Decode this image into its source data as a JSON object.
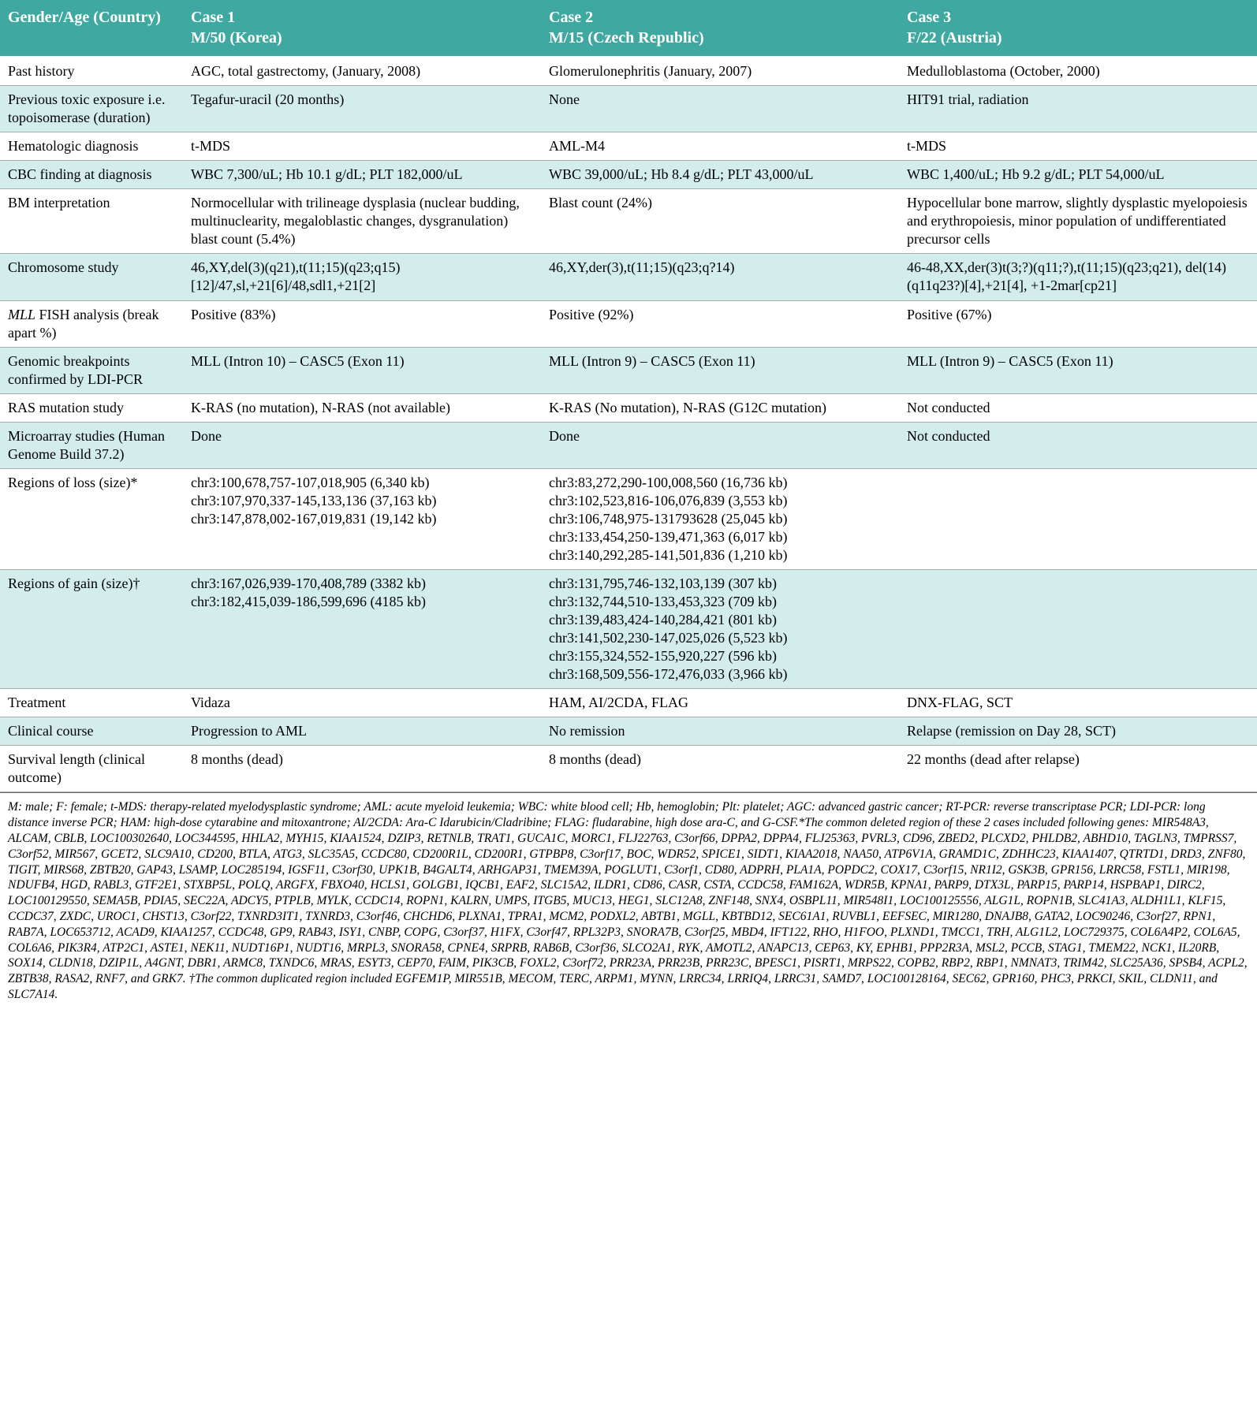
{
  "header_bg": "#3fa8a0",
  "header_fg": "#ffffff",
  "shade_bg": "#d3ecec",
  "border_color": "#aaaaaa",
  "columns": [
    {
      "label_l1": "",
      "label_l2": "Gender/Age (Country)"
    },
    {
      "label_l1": "Case 1",
      "label_l2": "M/50 (Korea)"
    },
    {
      "label_l1": "Case 2",
      "label_l2": "M/15 (Czech Republic)"
    },
    {
      "label_l1": "Case 3",
      "label_l2": "F/22 (Austria)"
    }
  ],
  "rows": [
    {
      "shade": false,
      "label": "Past history",
      "c1": "AGC, total gastrectomy, (January, 2008)",
      "c2": "Glomerulonephritis (January, 2007)",
      "c3": "Medulloblastoma (October, 2000)"
    },
    {
      "shade": true,
      "label": "Previous toxic exposure i.e. topoisomerase (duration)",
      "c1": "Tegafur-uracil (20 months)",
      "c2": "None",
      "c3": "HIT91 trial, radiation"
    },
    {
      "shade": false,
      "label": "Hematologic diagnosis",
      "c1": "t-MDS",
      "c2": "AML-M4",
      "c3": "t-MDS"
    },
    {
      "shade": true,
      "label": "CBC finding at diagnosis",
      "c1": "WBC 7,300/uL; Hb 10.1 g/dL; PLT 182,000/uL",
      "c2": "WBC 39,000/uL; Hb 8.4 g/dL; PLT 43,000/uL",
      "c3": "WBC 1,400/uL; Hb 9.2 g/dL; PLT 54,000/uL"
    },
    {
      "shade": false,
      "label": "BM interpretation",
      "c1": "Normocellular with trilineage dysplasia (nuclear budding, multinuclearity, megaloblastic changes, dysgranulation) blast count (5.4%)",
      "c2": "Blast count (24%)",
      "c3": "Hypocellular bone marrow, slightly dysplastic myelopoiesis and erythropoiesis, minor population of undifferentiated precursor cells"
    },
    {
      "shade": true,
      "label": "Chromosome study",
      "c1": "46,XY,del(3)(q21),t(11;15)(q23;q15)[12]/47,sl,+21[6]/48,sdl1,+21[2]",
      "c2": "46,XY,der(3),t(11;15)(q23;q?14)",
      "c3": "46-48,XX,der(3)t(3;?)(q11;?),t(11;15)(q23;q21), del(14)(q11q23?)[4],+21[4], +1-2mar[cp21]"
    },
    {
      "shade": false,
      "label_html": "<em class='gene'>MLL</em> FISH analysis (break apart %)",
      "c1": "Positive (83%)",
      "c2": "Positive (92%)",
      "c3": "Positive (67%)"
    },
    {
      "shade": true,
      "label": "Genomic breakpoints confirmed by LDI-PCR",
      "c1": "MLL (Intron 10) – CASC5 (Exon 11)",
      "c2": "MLL (Intron 9) – CASC5 (Exon 11)",
      "c3": "MLL (Intron 9) – CASC5 (Exon 11)"
    },
    {
      "shade": false,
      "label": "RAS mutation study",
      "c1": "K-RAS (no mutation), N-RAS (not available)",
      "c2": "K-RAS (No mutation), N-RAS (G12C mutation)",
      "c3": "Not conducted"
    },
    {
      "shade": true,
      "label": "Microarray studies (Human Genome Build 37.2)",
      "c1": "Done",
      "c2": "Done",
      "c3": "Not conducted"
    },
    {
      "shade": false,
      "label": "Regions of loss (size)*",
      "c1": "chr3:100,678,757-107,018,905 (6,340 kb)\nchr3:107,970,337-145,133,136 (37,163 kb)\nchr3:147,878,002-167,019,831 (19,142 kb)",
      "c2": "chr3:83,272,290-100,008,560 (16,736 kb)\nchr3:102,523,816-106,076,839 (3,553 kb)\nchr3:106,748,975-131793628 (25,045 kb)\nchr3:133,454,250-139,471,363 (6,017 kb)\nchr3:140,292,285-141,501,836 (1,210 kb)",
      "c3": ""
    },
    {
      "shade": true,
      "label": "Regions of gain (size)†",
      "c1": "chr3:167,026,939-170,408,789 (3382 kb)\nchr3:182,415,039-186,599,696 (4185 kb)",
      "c2": "chr3:131,795,746-132,103,139 (307 kb)\nchr3:132,744,510-133,453,323 (709 kb)\nchr3:139,483,424-140,284,421 (801 kb)\nchr3:141,502,230-147,025,026 (5,523 kb)\nchr3:155,324,552-155,920,227 (596 kb)\nchr3:168,509,556-172,476,033 (3,966 kb)",
      "c3": ""
    },
    {
      "shade": false,
      "label": "Treatment",
      "c1": "Vidaza",
      "c2": "HAM, AI/2CDA, FLAG",
      "c3": "DNX-FLAG, SCT"
    },
    {
      "shade": true,
      "label": "Clinical course",
      "c1": "Progression to AML",
      "c2": "No remission",
      "c3": "Relapse (remission on Day 28, SCT)"
    },
    {
      "shade": false,
      "label": "Survival length (clinical outcome)",
      "c1": "8 months (dead)",
      "c2": "8 months (dead)",
      "c3": "22 months (dead after relapse)"
    }
  ],
  "footnote": "M: male; F: female; t-MDS: therapy-related myelodysplastic syndrome; AML: acute myeloid leukemia; WBC: white blood cell; Hb, hemoglobin; Plt: platelet; AGC: advanced gastric cancer; RT-PCR: reverse transcriptase PCR; LDI-PCR: long distance inverse PCR; HAM: high-dose cytarabine and mitoxantrone; AI/2CDA: Ara-C Idarubicin/Cladribine; FLAG: fludarabine, high dose ara-C, and G-CSF.*The common deleted region of these 2 cases included following genes: MIR548A3, ALCAM, CBLB, LOC100302640, LOC344595, HHLA2, MYH15, KIAA1524, DZIP3, RETNLB, TRAT1, GUCA1C, MORC1, FLJ22763, C3orf66, DPPA2, DPPA4, FLJ25363, PVRL3, CD96, ZBED2, PLCXD2, PHLDB2, ABHD10, TAGLN3, TMPRSS7, C3orf52, MIR567, GCET2, SLC9A10, CD200, BTLA, ATG3, SLC35A5, CCDC80, CD200R1L, CD200R1, GTPBP8, C3orf17, BOC, WDR52, SPICE1, SIDT1, KIAA2018, NAA50, ATP6V1A, GRAMD1C, ZDHHC23, KIAA1407, QTRTD1, DRD3, ZNF80, TIGIT, MIRS68, ZBTB20, GAP43, LSAMP, LOC285194, IGSF11, C3orf30, UPK1B, B4GALT4, ARHGAP31, TMEM39A, POGLUT1, C3orf1, CD80, ADPRH, PLA1A, POPDC2, COX17, C3orf15, NR1I2, GSK3B, GPR156, LRRC58, FSTL1, MIR198, NDUFB4, HGD, RABL3, GTF2E1, STXBP5L, POLQ, ARGFX, FBXO40, HCLS1, GOLGB1, IQCB1, EAF2, SLC15A2, ILDR1, CD86, CASR, CSTA, CCDC58, FAM162A, WDR5B, KPNA1, PARP9, DTX3L, PARP15, PARP14, HSPBAP1, DIRC2, LOC100129550, SEMA5B, PDIA5, SEC22A, ADCY5, PTPLB, MYLK, CCDC14, ROPN1, KALRN, UMPS, ITGB5, MUC13, HEG1, SLC12A8, ZNF148, SNX4, OSBPL11, MIR548I1, LOC100125556, ALG1L, ROPN1B, SLC41A3, ALDH1L1, KLF15, CCDC37, ZXDC, UROC1, CHST13, C3orf22, TXNRD3IT1, TXNRD3, C3orf46, CHCHD6, PLXNA1, TPRA1, MCM2, PODXL2, ABTB1, MGLL, KBTBD12, SEC61A1, RUVBL1, EEFSEC, MIR1280, DNAJB8, GATA2, LOC90246, C3orf27, RPN1, RAB7A, LOC653712, ACAD9, KIAA1257, CCDC48, GP9, RAB43, ISY1, CNBP, COPG, C3orf37, H1FX, C3orf47, RPL32P3, SNORA7B, C3orf25, MBD4, IFT122, RHO, H1FOO, PLXND1, TMCC1, TRH, ALG1L2, LOC729375, COL6A4P2, COL6A5, COL6A6, PIK3R4, ATP2C1, ASTE1, NEK11, NUDT16P1, NUDT16, MRPL3, SNORA58, CPNE4, SRPRB, RAB6B, C3orf36, SLCO2A1, RYK, AMOTL2, ANAPC13, CEP63, KY, EPHB1, PPP2R3A, MSL2, PCCB, STAG1, TMEM22, NCK1, IL20RB, SOX14, CLDN18, DZIP1L, A4GNT, DBR1, ARMC8, TXNDC6, MRAS, ESYT3, CEP70, FAIM, PIK3CB, FOXL2, C3orf72, PRR23A, PRR23B, PRR23C, BPESC1, PISRT1, MRPS22, COPB2, RBP2, RBP1, NMNAT3, TRIM42, SLC25A36, SPSB4, ACPL2, ZBTB38, RASA2, RNF7, and GRK7. †The common duplicated region included EGFEM1P, MIR551B, MECOM, TERC, ARPM1, MYNN, LRRC34, LRRIQ4, LRRC31, SAMD7, LOC100128164, SEC62, GPR160, PHC3, PRKCI, SKIL, CLDN11, and SLC7A14."
}
